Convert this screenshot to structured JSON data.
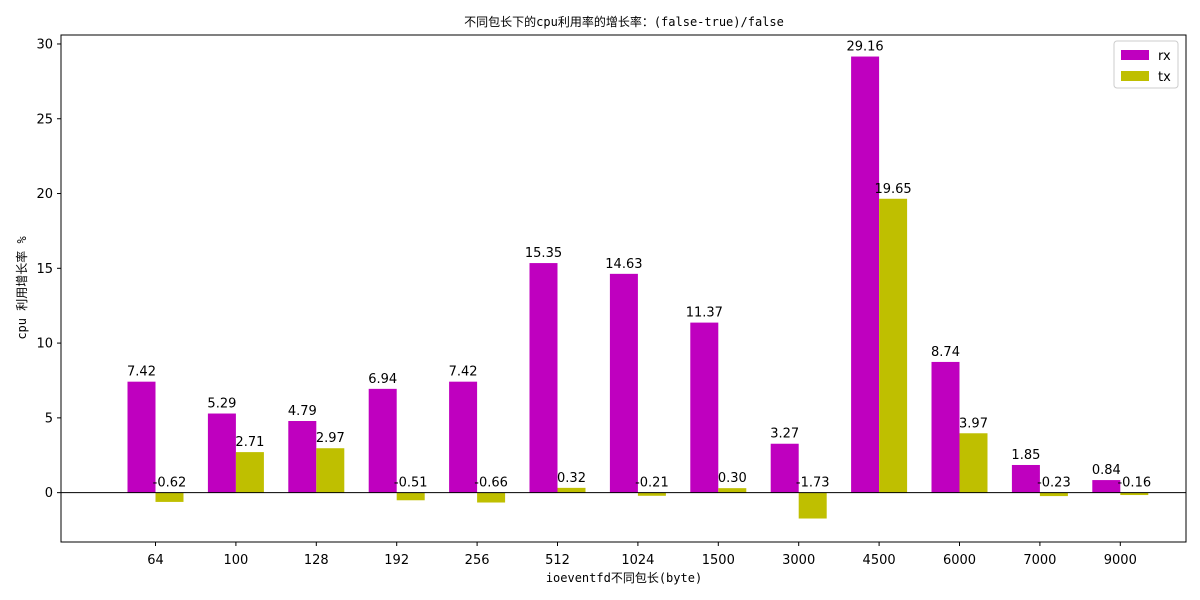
{
  "chart_data": {
    "type": "bar",
    "title": "不同包长下的cpu利用率的增长率：(false-true)/false",
    "xlabel": "ioeventfd不同包长(byte)",
    "ylabel": "cpu 利用增长率 %",
    "categories": [
      "64",
      "100",
      "128",
      "192",
      "256",
      "512",
      "1024",
      "1500",
      "3000",
      "4500",
      "6000",
      "7000",
      "9000"
    ],
    "series": [
      {
        "name": "rx",
        "color": "#bf00bf",
        "values": [
          7.42,
          5.29,
          4.79,
          6.94,
          7.42,
          15.35,
          14.63,
          11.37,
          3.27,
          29.16,
          8.74,
          1.85,
          0.84
        ],
        "labels": [
          "7.42",
          "5.29",
          "4.79",
          "6.94",
          "7.42",
          "15.35",
          "14.63",
          "11.37",
          "3.27",
          "29.16",
          "8.74",
          "1.85",
          "0.84"
        ]
      },
      {
        "name": "tx",
        "color": "#bfbf00",
        "values": [
          -0.62,
          2.71,
          2.97,
          -0.51,
          -0.66,
          0.32,
          -0.21,
          0.3,
          -1.73,
          19.65,
          3.97,
          -0.23,
          -0.16
        ],
        "labels": [
          "-0.62",
          "2.71",
          "2.97",
          "-0.51",
          "-0.66",
          "0.32",
          "-0.21",
          "0.30",
          "-1.73",
          "19.65",
          "3.97",
          "-0.23",
          "-0.16"
        ]
      }
    ],
    "ylim": [
      -3.3,
      30.6
    ],
    "yticks": [
      0,
      5,
      10,
      15,
      20,
      25,
      30
    ],
    "ytick_labels": [
      "0",
      "5",
      "10",
      "15",
      "20",
      "25",
      "30"
    ],
    "zero_line": true,
    "grid": false,
    "legend_position": "top-right"
  }
}
